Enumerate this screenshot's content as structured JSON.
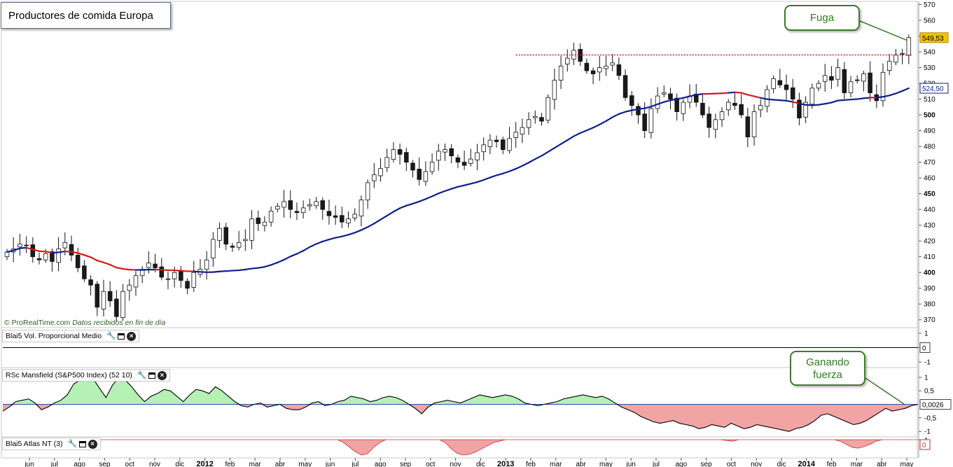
{
  "title": "Productores de comida Europa",
  "credit": {
    "brand": "© ProRealTime.com",
    "note": "Datos recibidos en fin de día"
  },
  "colors": {
    "bull": "#ffffff",
    "bear": "#1a1a1a",
    "ma_up": "#0d1f8c",
    "ma_down": "#d41a1a",
    "resistance": "#d41a1a",
    "pos_fill": "#b5f0b5",
    "neg_fill": "#f2a3a3",
    "callout": "#3d7a2b"
  },
  "callouts": {
    "fuga": "Fuga",
    "ganando": "Ganando fuerza"
  },
  "price_axis": {
    "ticks": [
      570,
      560,
      550,
      540,
      530,
      520,
      510,
      500,
      490,
      480,
      470,
      460,
      450,
      440,
      430,
      420,
      410,
      400,
      390,
      380,
      370
    ],
    "bold_ticks": [
      550,
      500,
      450,
      400
    ],
    "last_price": "549,53",
    "ma_value": "524,50",
    "ylim": [
      365,
      572
    ]
  },
  "volume_panel": {
    "label": "Blai5 Vol. Proporcional Medio",
    "ticks": [
      "1",
      "0",
      "-1"
    ],
    "value": "0"
  },
  "rsc_panel": {
    "label": "RSc Mansfield (S&P500 Index) (52 10)",
    "ticks": [
      "1",
      "0,5",
      "-0,5",
      "-1"
    ],
    "value": "0,0026"
  },
  "atlas_panel": {
    "label": "Blai5 Atlas NT (3)",
    "ticks": [
      "1"
    ],
    "value": "0"
  },
  "x_axis": {
    "labels": [
      "jun",
      "jul",
      "ago",
      "sep",
      "oct",
      "nov",
      "dic",
      "2012",
      "feb",
      "mar",
      "abr",
      "may",
      "jun",
      "jul",
      "ago",
      "sep",
      "oct",
      "nov",
      "dic",
      "2013",
      "feb",
      "mar",
      "abr",
      "may",
      "jun",
      "jul",
      "ago",
      "sep",
      "oct",
      "nov",
      "dic",
      "2014",
      "feb",
      "mar",
      "abr",
      "may"
    ],
    "bold": [
      "2012",
      "2013",
      "2014"
    ]
  },
  "chart_data": {
    "type": "candlestick",
    "period": "weekly",
    "resistance": 538,
    "closes": [
      413,
      415,
      418,
      417,
      410,
      408,
      412,
      407,
      415,
      419,
      411,
      403,
      396,
      392,
      378,
      388,
      382,
      372,
      388,
      392,
      398,
      402,
      406,
      403,
      397,
      396,
      400,
      395,
      390,
      400,
      402,
      408,
      421,
      428,
      418,
      416,
      419,
      421,
      434,
      431,
      432,
      439,
      442,
      445,
      440,
      438,
      441,
      443,
      445,
      440,
      436,
      435,
      432,
      434,
      437,
      446,
      457,
      462,
      466,
      473,
      478,
      475,
      470,
      465,
      459,
      464,
      470,
      477,
      478,
      474,
      470,
      468,
      472,
      476,
      481,
      484,
      483,
      478,
      485,
      489,
      492,
      497,
      499,
      496,
      511,
      522,
      531,
      536,
      541,
      534,
      528,
      526,
      530,
      531,
      533,
      525,
      511,
      506,
      500,
      490,
      504,
      512,
      514,
      510,
      502,
      508,
      512,
      508,
      500,
      492,
      497,
      502,
      508,
      506,
      500,
      486,
      502,
      506,
      516,
      523,
      519,
      516,
      510,
      498,
      508,
      517,
      520,
      525,
      522,
      530,
      514,
      521,
      522,
      526,
      514,
      509,
      527,
      534,
      538,
      539,
      549
    ]
  },
  "rsc_data": [
    -0.25,
    -0.1,
    0.1,
    0.15,
    0.2,
    0.05,
    -0.2,
    -0.1,
    0.05,
    0.15,
    0.35,
    0.75,
    0.9,
    1.0,
    0.95,
    0.6,
    0.25,
    0.7,
    1.0,
    0.9,
    0.65,
    0.35,
    0.1,
    0.3,
    0.4,
    0.55,
    0.5,
    0.3,
    0.1,
    0.35,
    0.55,
    0.5,
    0.4,
    0.65,
    0.5,
    0.3,
    0.1,
    -0.05,
    -0.1,
    0.0,
    0.05,
    -0.1,
    -0.05,
    0.0,
    -0.15,
    -0.2,
    -0.2,
    -0.1,
    0.05,
    0.1,
    -0.05,
    0.0,
    0.1,
    0.15,
    0.3,
    0.25,
    0.2,
    0.1,
    0.15,
    0.25,
    0.3,
    0.25,
    0.15,
    0.0,
    -0.15,
    -0.35,
    -0.1,
    0.05,
    0.1,
    0.15,
    0.1,
    0.05,
    0.15,
    0.25,
    0.35,
    0.3,
    0.25,
    0.3,
    0.35,
    0.3,
    0.2,
    0.05,
    0.0,
    -0.05,
    0.0,
    0.05,
    0.1,
    0.2,
    0.25,
    0.3,
    0.35,
    0.3,
    0.25,
    0.3,
    0.2,
    0.05,
    -0.1,
    -0.2,
    -0.3,
    -0.45,
    -0.55,
    -0.65,
    -0.7,
    -0.65,
    -0.6,
    -0.7,
    -0.75,
    -0.8,
    -0.9,
    -0.85,
    -0.75,
    -0.8,
    -0.85,
    -0.7,
    -0.8,
    -0.9,
    -0.85,
    -0.75,
    -0.8,
    -0.85,
    -0.9,
    -0.95,
    -1.0,
    -0.9,
    -0.85,
    -0.75,
    -0.6,
    -0.4,
    -0.35,
    -0.45,
    -0.55,
    -0.65,
    -0.75,
    -0.7,
    -0.6,
    -0.45,
    -0.3,
    -0.15,
    -0.25,
    -0.2,
    -0.15,
    -0.05,
    0.0
  ],
  "atlas_data": [
    0,
    0,
    0,
    0,
    0,
    0,
    0,
    0,
    0,
    0,
    0,
    0,
    0,
    0,
    0,
    0,
    0,
    0,
    0,
    0,
    0,
    0,
    0,
    0,
    0,
    0,
    0,
    0,
    0,
    0,
    0,
    0,
    0,
    0,
    0,
    0,
    0,
    0,
    0,
    0,
    0,
    0,
    0,
    0,
    0,
    0,
    0,
    0,
    0,
    0,
    0,
    0,
    0,
    0,
    0,
    0,
    0,
    -0.2,
    -0.5,
    -0.8,
    -1.0,
    -0.9,
    -0.5,
    -0.2,
    0,
    0,
    0,
    0,
    0,
    0,
    0,
    0,
    0,
    0,
    -0.2,
    -0.6,
    -0.9,
    -1.0,
    -0.95,
    -0.8,
    -0.6,
    -0.4,
    -0.2,
    -0.1,
    0,
    0,
    0,
    0,
    0,
    0,
    0,
    0,
    0,
    0,
    0,
    0,
    0,
    0,
    0,
    0,
    0,
    0,
    0,
    0,
    0,
    0,
    0,
    0,
    0,
    0,
    0,
    0,
    0,
    0,
    0,
    0,
    0,
    0,
    0,
    0,
    0,
    -0.05,
    -0.1,
    0,
    0,
    0,
    0,
    0,
    0,
    0,
    0,
    0,
    0,
    0,
    0,
    0,
    0,
    0,
    0,
    0,
    -0.1,
    -0.3,
    -0.5,
    -0.55,
    -0.45,
    -0.3,
    -0.1,
    0,
    0,
    0,
    0,
    0,
    0,
    0
  ]
}
